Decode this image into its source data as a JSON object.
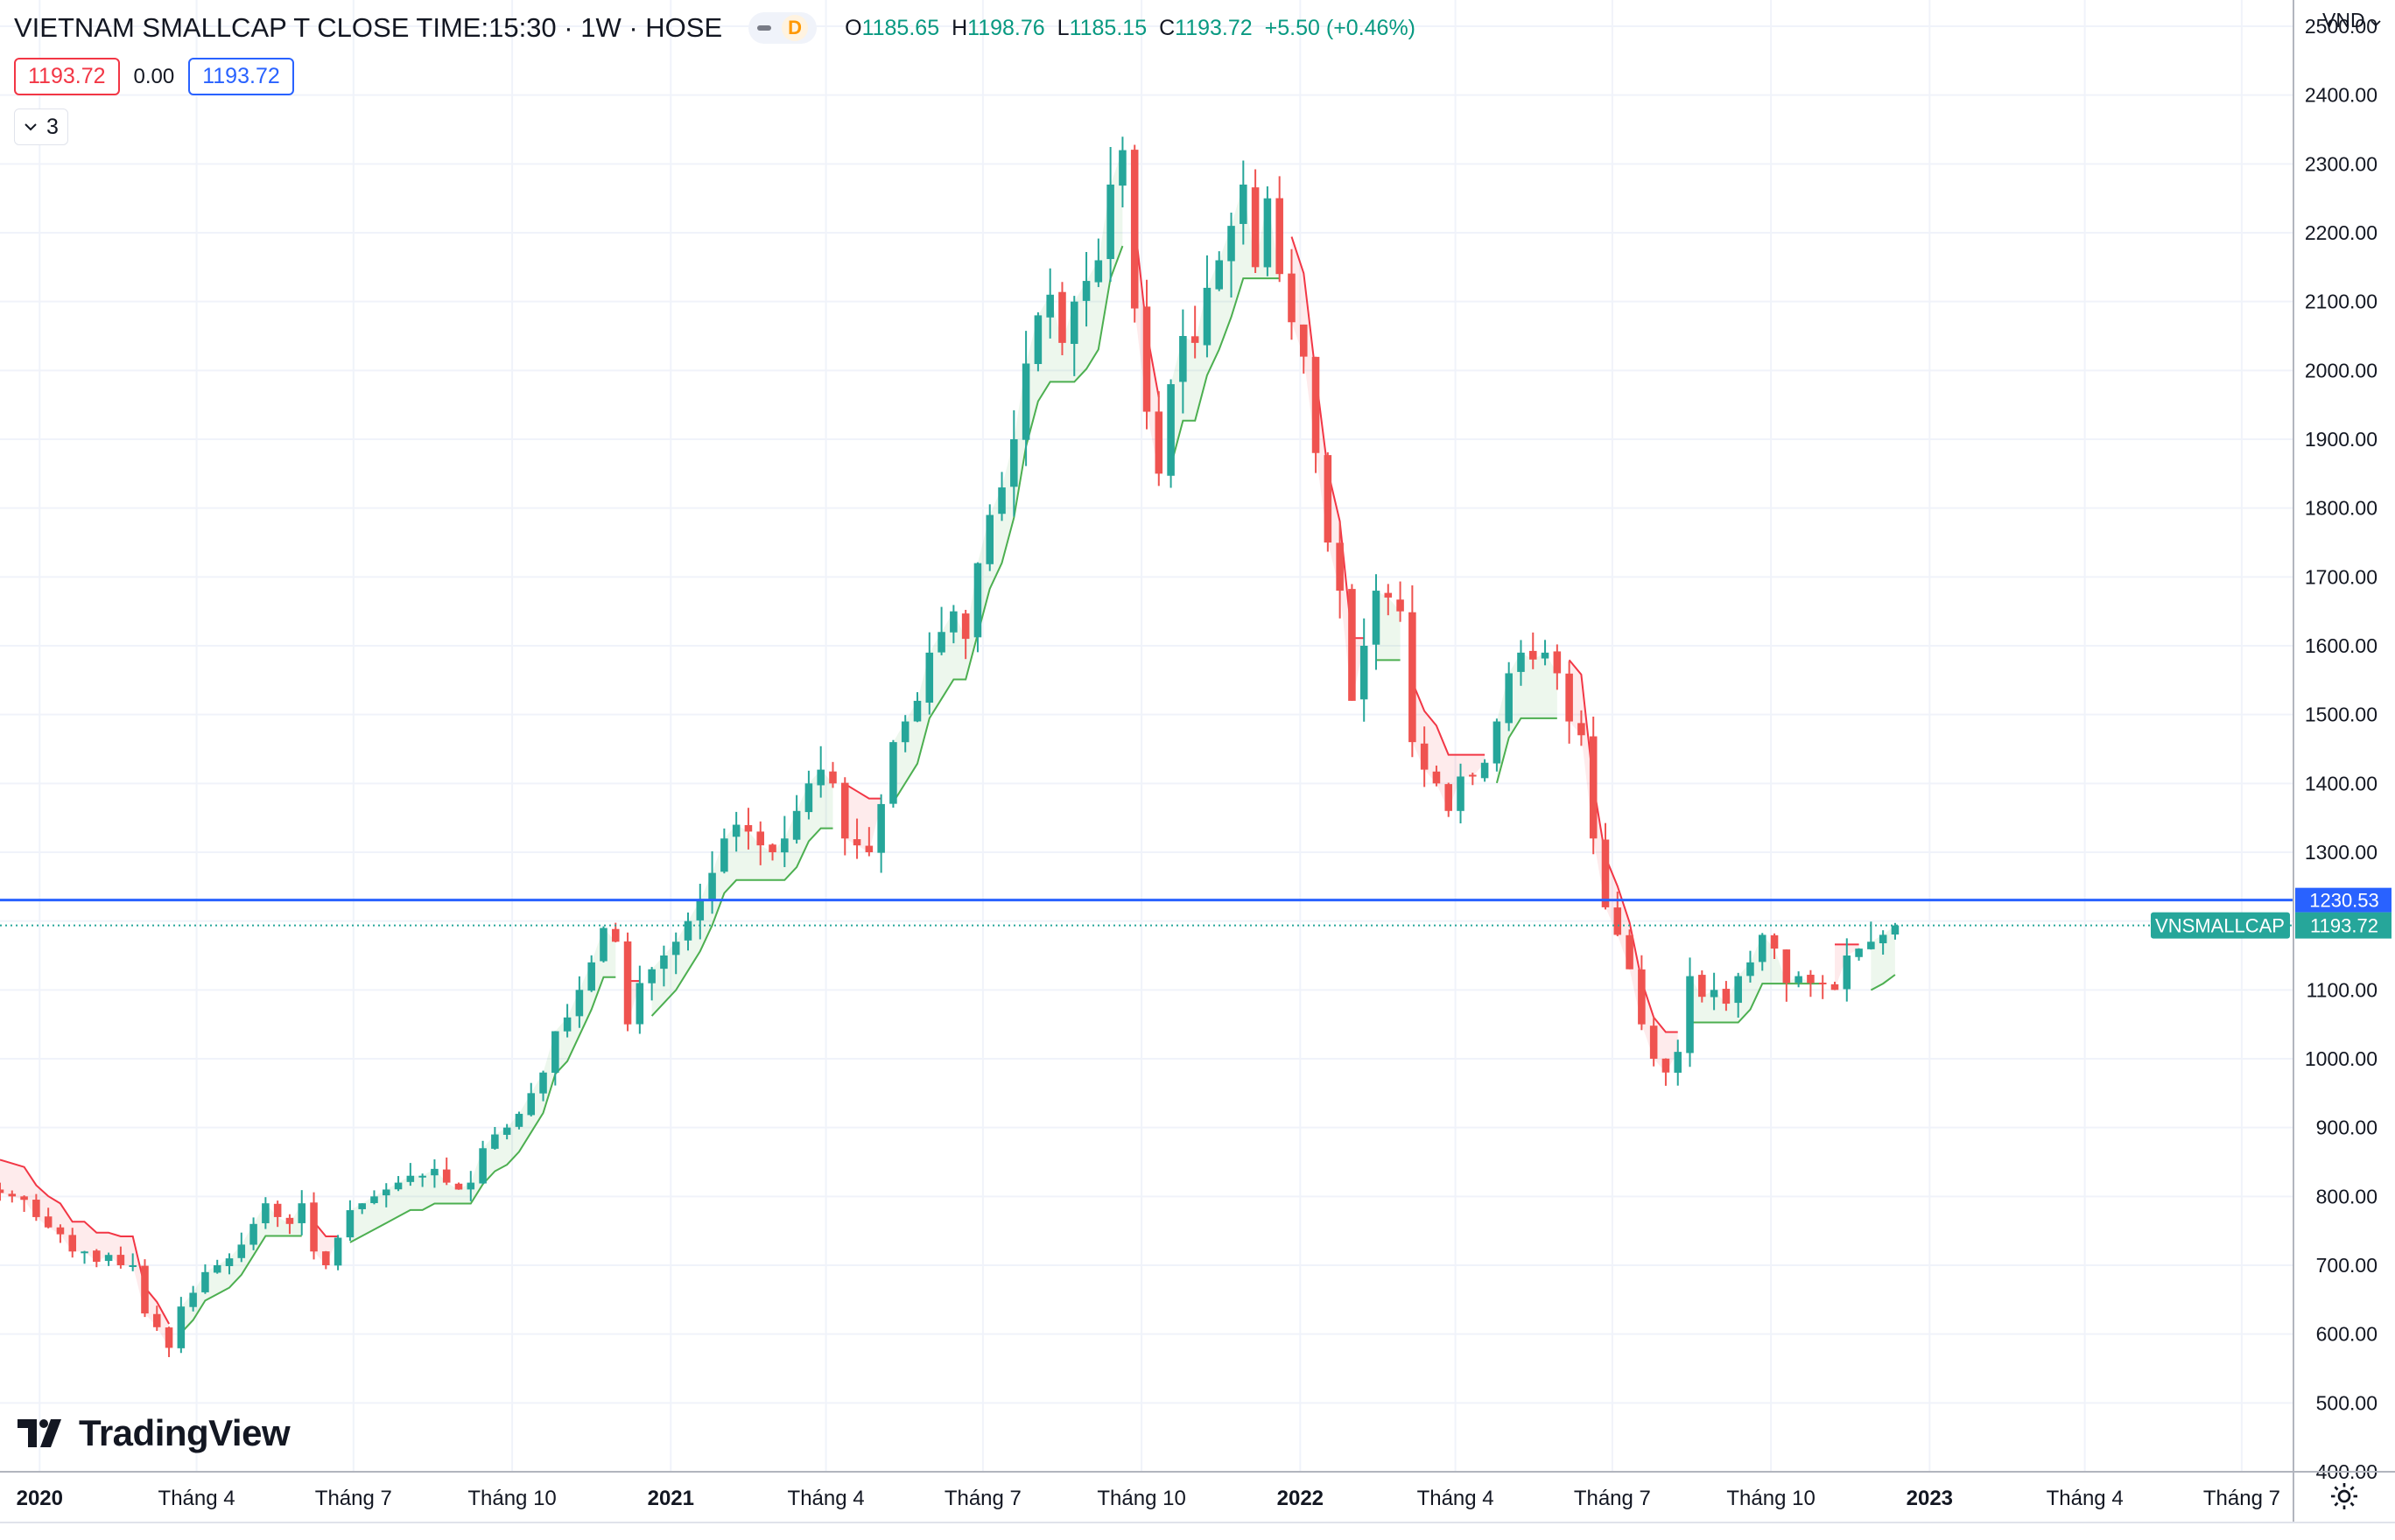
{
  "header": {
    "symbol": "VIETNAM SMALLCAP T CLOSE TIME:15:30 · 1W · HOSE",
    "badge_letter": "D",
    "ohlc": [
      {
        "k": "O",
        "v": "1185.65"
      },
      {
        "k": "H",
        "v": "1198.76"
      },
      {
        "k": "L",
        "v": "1185.15"
      },
      {
        "k": "C",
        "v": "1193.72"
      },
      {
        "k": "",
        "v": "+5.50 (+0.46%)"
      }
    ]
  },
  "indicator_values": {
    "red": "1193.72",
    "mid": "0.00",
    "blue": "1193.72"
  },
  "collapse_count": "3",
  "currency": "VND",
  "logo_text": "TradingView",
  "colors": {
    "up": "#26a69a",
    "down": "#ef5350",
    "trail_up": "#4caf50",
    "trail_down": "#f23645",
    "hline": "#2962ff",
    "last": "#26a69a",
    "grid": "#f0f3fa",
    "axis_text": "#131722"
  },
  "chart_data": {
    "type": "candlestick",
    "title": "VIETNAM SMALLCAP T CLOSE TIME:15:30 · 1W · HOSE",
    "timeframe": "1W",
    "ylim": [
      400,
      2500
    ],
    "yticks": [
      400,
      500,
      600,
      700,
      800,
      900,
      1000,
      1100,
      1200,
      1300,
      1400,
      1500,
      1600,
      1700,
      1800,
      1900,
      2000,
      2100,
      2200,
      2300,
      2400,
      2500
    ],
    "ytick_labels": [
      "400.00",
      "500.00",
      "600.00",
      "700.00",
      "800.00",
      "900.00",
      "1000.00",
      "1100.00",
      "",
      "1300.00",
      "1400.00",
      "1500.00",
      "1600.00",
      "1700.00",
      "1800.00",
      "1900.00",
      "2000.00",
      "2100.00",
      "2200.00",
      "2300.00",
      "2400.00",
      "2500.00"
    ],
    "xticks": [
      {
        "label": "2020",
        "date": "2020-01-01",
        "bold": true
      },
      {
        "label": "Tháng 4",
        "date": "2020-04-01",
        "bold": false
      },
      {
        "label": "Tháng 7",
        "date": "2020-07-01",
        "bold": false
      },
      {
        "label": "Tháng 10",
        "date": "2020-10-01",
        "bold": false
      },
      {
        "label": "2021",
        "date": "2021-01-01",
        "bold": true
      },
      {
        "label": "Tháng 4",
        "date": "2021-04-01",
        "bold": false
      },
      {
        "label": "Tháng 7",
        "date": "2021-07-01",
        "bold": false
      },
      {
        "label": "Tháng 10",
        "date": "2021-10-01",
        "bold": false
      },
      {
        "label": "2022",
        "date": "2022-01-01",
        "bold": true
      },
      {
        "label": "Tháng 4",
        "date": "2022-04-01",
        "bold": false
      },
      {
        "label": "Tháng 7",
        "date": "2022-07-01",
        "bold": false
      },
      {
        "label": "Tháng 10",
        "date": "2022-10-01",
        "bold": false
      },
      {
        "label": "2023",
        "date": "2023-01-01",
        "bold": true
      },
      {
        "label": "Tháng 4",
        "date": "2023-04-01",
        "bold": false
      },
      {
        "label": "Tháng 7",
        "date": "2023-07-01",
        "bold": false
      }
    ],
    "x_range": [
      "2019-12-09",
      "2023-07-31"
    ],
    "weeks_start": "2019-12-09",
    "closes": [
      805,
      800,
      795,
      770,
      755,
      745,
      720,
      720,
      705,
      715,
      700,
      700,
      630,
      610,
      580,
      640,
      660,
      690,
      700,
      710,
      730,
      760,
      790,
      770,
      760,
      790,
      720,
      700,
      740,
      780,
      790,
      800,
      810,
      820,
      830,
      830,
      840,
      820,
      810,
      820,
      870,
      890,
      900,
      920,
      950,
      980,
      1040,
      1060,
      1100,
      1140,
      1190,
      1170,
      1050,
      1110,
      1130,
      1150,
      1170,
      1200,
      1230,
      1270,
      1320,
      1340,
      1330,
      1310,
      1300,
      1320,
      1360,
      1400,
      1420,
      1400,
      1320,
      1310,
      1300,
      1370,
      1460,
      1490,
      1520,
      1590,
      1620,
      1650,
      1610,
      1720,
      1790,
      1830,
      1900,
      2010,
      2080,
      2110,
      2040,
      2100,
      2130,
      2160,
      2270,
      2320,
      2090,
      1940,
      1850,
      1980,
      2050,
      2040,
      2120,
      2160,
      2210,
      2270,
      2150,
      2250,
      2140,
      2070,
      2020,
      1880,
      1750,
      1680,
      1520,
      1600,
      1680,
      1670,
      1650,
      1460,
      1420,
      1400,
      1360,
      1410,
      1410,
      1430,
      1490,
      1560,
      1590,
      1580,
      1590,
      1560,
      1490,
      1470,
      1320,
      1220,
      1180,
      1130,
      1050,
      1000,
      980,
      1010,
      1120,
      1090,
      1100,
      1080,
      1120,
      1140,
      1180,
      1160,
      1110,
      1120,
      1110,
      1110,
      1100,
      1150,
      1160,
      1170,
      1180,
      1193.72
    ],
    "horizontal_line": {
      "value": 1230.53,
      "label": "1230.53"
    },
    "last_price": {
      "value": 1193.72,
      "label": "1193.72",
      "name": "VNSMALLCAP"
    }
  }
}
